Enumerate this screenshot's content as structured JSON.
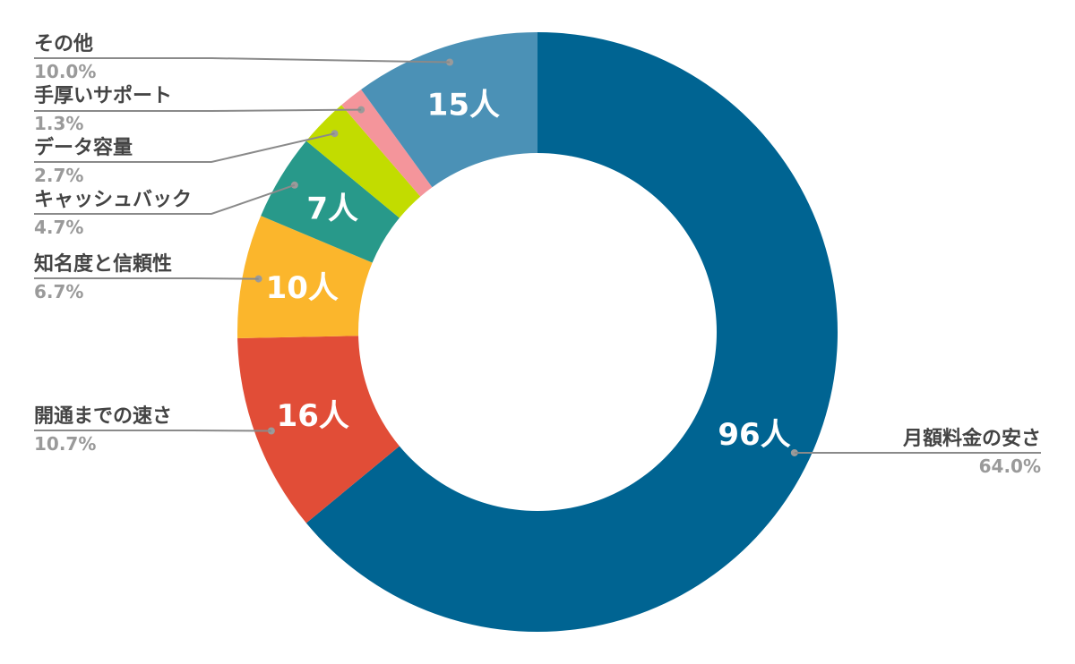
{
  "chart_data": {
    "type": "pie",
    "slices": [
      {
        "name": "月額料金の安さ",
        "count": 96,
        "value_label": "96人",
        "percent_label": "64.0%",
        "color": "#006492"
      },
      {
        "name": "開通までの速さ",
        "count": 16,
        "value_label": "16人",
        "percent_label": "10.7%",
        "color": "#e14d37"
      },
      {
        "name": "知名度と信頼性",
        "count": 10,
        "value_label": "10人",
        "percent_label": "6.7%",
        "color": "#fbb62c"
      },
      {
        "name": "キャッシュバック",
        "count": 7,
        "value_label": "7人",
        "percent_label": "4.7%",
        "color": "#28998a"
      },
      {
        "name": "データ容量",
        "count": 4,
        "value_label": "",
        "percent_label": "2.7%",
        "color": "#c2dc00"
      },
      {
        "name": "手厚いサポート",
        "count": 2,
        "value_label": "",
        "percent_label": "1.3%",
        "color": "#f4959b"
      },
      {
        "name": "その他",
        "count": 15,
        "value_label": "15人",
        "percent_label": "10.0%",
        "color": "#4b91b6"
      }
    ]
  }
}
